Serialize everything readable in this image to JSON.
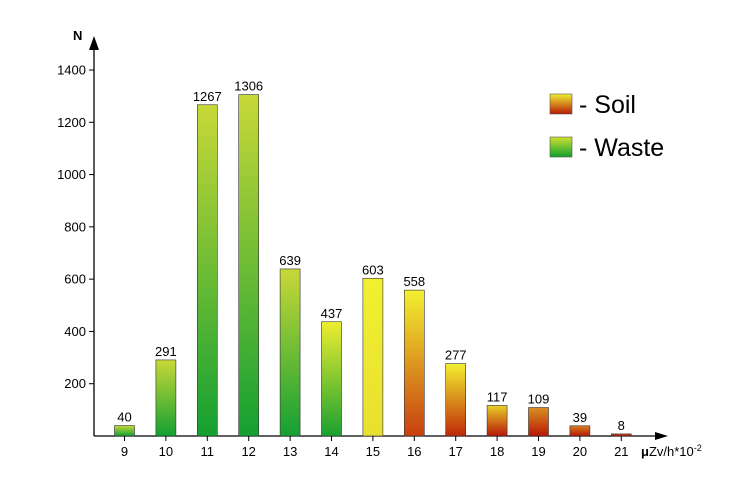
{
  "chart_data": {
    "type": "bar",
    "ylabel": "N",
    "xlabel_prefix": "μ",
    "xlabel_main": "Zv/h*10",
    "xlabel_exp": "-2",
    "categories": [
      "9",
      "10",
      "11",
      "12",
      "13",
      "14",
      "15",
      "16",
      "17",
      "18",
      "19",
      "20",
      "21"
    ],
    "values": [
      40,
      291,
      1267,
      1306,
      639,
      437,
      603,
      558,
      277,
      117,
      109,
      39,
      8
    ],
    "value_labels": [
      "40",
      "291",
      "1267",
      "1306",
      "639",
      "437",
      "603",
      "558",
      "277",
      "117",
      "109",
      "39",
      "8"
    ],
    "ylim": [
      0,
      1400
    ],
    "yticks": [
      200,
      400,
      600,
      800,
      1000,
      1200,
      1400
    ],
    "ytick_labels": [
      "200",
      "400",
      "600",
      "800",
      "1000",
      "1200",
      "1400"
    ],
    "grid": false,
    "legend_position": "top-right",
    "series": [
      {
        "name": "- Soil",
        "color_top": "#f0f030",
        "color_bottom": "#b81808"
      },
      {
        "name": "- Waste",
        "color_top": "#d0e030",
        "color_bottom": "#10a030"
      }
    ],
    "bar_fill": [
      {
        "top": "#c8d838",
        "bottom": "#14a032"
      },
      {
        "top": "#c8d838",
        "bottom": "#14a032"
      },
      {
        "top": "#c8d838",
        "bottom": "#14a032"
      },
      {
        "top": "#c8d838",
        "bottom": "#14a032"
      },
      {
        "top": "#c8d838",
        "bottom": "#14a032"
      },
      {
        "top": "#eeee30",
        "bottom": "#1aa030"
      },
      {
        "top": "#f2f030",
        "bottom": "#e8e030"
      },
      {
        "top": "#f2f030",
        "bottom": "#c84010"
      },
      {
        "top": "#f2f030",
        "bottom": "#c02808"
      },
      {
        "top": "#e8d028",
        "bottom": "#b81808"
      },
      {
        "top": "#d89020",
        "bottom": "#b81808"
      },
      {
        "top": "#d88020",
        "bottom": "#b81808"
      },
      {
        "top": "#c84018",
        "bottom": "#b81808"
      }
    ]
  }
}
